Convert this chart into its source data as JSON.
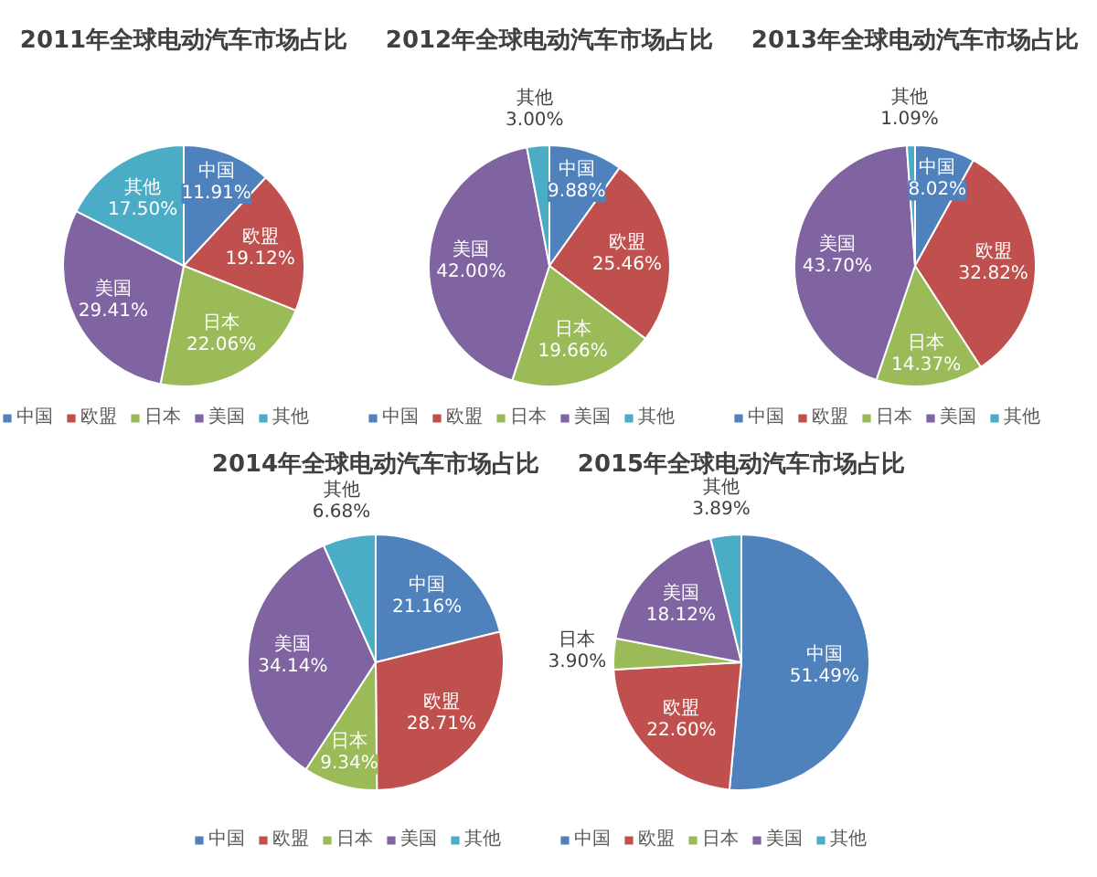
{
  "chart_data": [
    {
      "type": "pie",
      "title": "2011年全球电动汽车市场占比",
      "categories": [
        "中国",
        "欧盟",
        "日本",
        "美国",
        "其他"
      ],
      "values": [
        11.91,
        19.12,
        22.06,
        29.41,
        17.5
      ],
      "value_labels": [
        "11.91%",
        "19.12%",
        "22.06%",
        "29.41%",
        "17.50%"
      ],
      "colors": [
        "#4f81bd",
        "#c0504d",
        "#9bbb59",
        "#8064a2",
        "#4bacc6"
      ],
      "legend": "bottom"
    },
    {
      "type": "pie",
      "title": "2012年全球电动汽车市场占比",
      "categories": [
        "中国",
        "欧盟",
        "日本",
        "美国",
        "其他"
      ],
      "values": [
        9.88,
        25.46,
        19.66,
        42.0,
        3.0
      ],
      "value_labels": [
        "9.88%",
        "25.46%",
        "19.66%",
        "42.00%",
        "3.00%"
      ],
      "colors": [
        "#4f81bd",
        "#c0504d",
        "#9bbb59",
        "#8064a2",
        "#4bacc6"
      ],
      "legend": "bottom"
    },
    {
      "type": "pie",
      "title": "2013年全球电动汽车市场占比",
      "categories": [
        "中国",
        "欧盟",
        "日本",
        "美国",
        "其他"
      ],
      "values": [
        8.02,
        32.82,
        14.37,
        43.7,
        1.09
      ],
      "value_labels": [
        "8.02%",
        "32.82%",
        "14.37%",
        "43.70%",
        "1.09%"
      ],
      "colors": [
        "#4f81bd",
        "#c0504d",
        "#9bbb59",
        "#8064a2",
        "#4bacc6"
      ],
      "legend": "bottom"
    },
    {
      "type": "pie",
      "title": "2014年全球电动汽车市场占比",
      "categories": [
        "中国",
        "欧盟",
        "日本",
        "美国",
        "其他"
      ],
      "values": [
        21.16,
        28.71,
        9.34,
        34.14,
        6.68
      ],
      "value_labels": [
        "21.16%",
        "28.71%",
        "9.34%",
        "34.14%",
        "6.68%"
      ],
      "colors": [
        "#4f81bd",
        "#c0504d",
        "#9bbb59",
        "#8064a2",
        "#4bacc6"
      ],
      "legend": "bottom"
    },
    {
      "type": "pie",
      "title": "2015年全球电动汽车市场占比",
      "categories": [
        "中国",
        "欧盟",
        "日本",
        "美国",
        "其他"
      ],
      "values": [
        51.49,
        22.6,
        3.9,
        18.12,
        3.89
      ],
      "value_labels": [
        "51.49%",
        "22.60%",
        "3.90%",
        "18.12%",
        "3.89%"
      ],
      "colors": [
        "#4f81bd",
        "#c0504d",
        "#9bbb59",
        "#8064a2",
        "#4bacc6"
      ],
      "legend": "bottom"
    }
  ]
}
